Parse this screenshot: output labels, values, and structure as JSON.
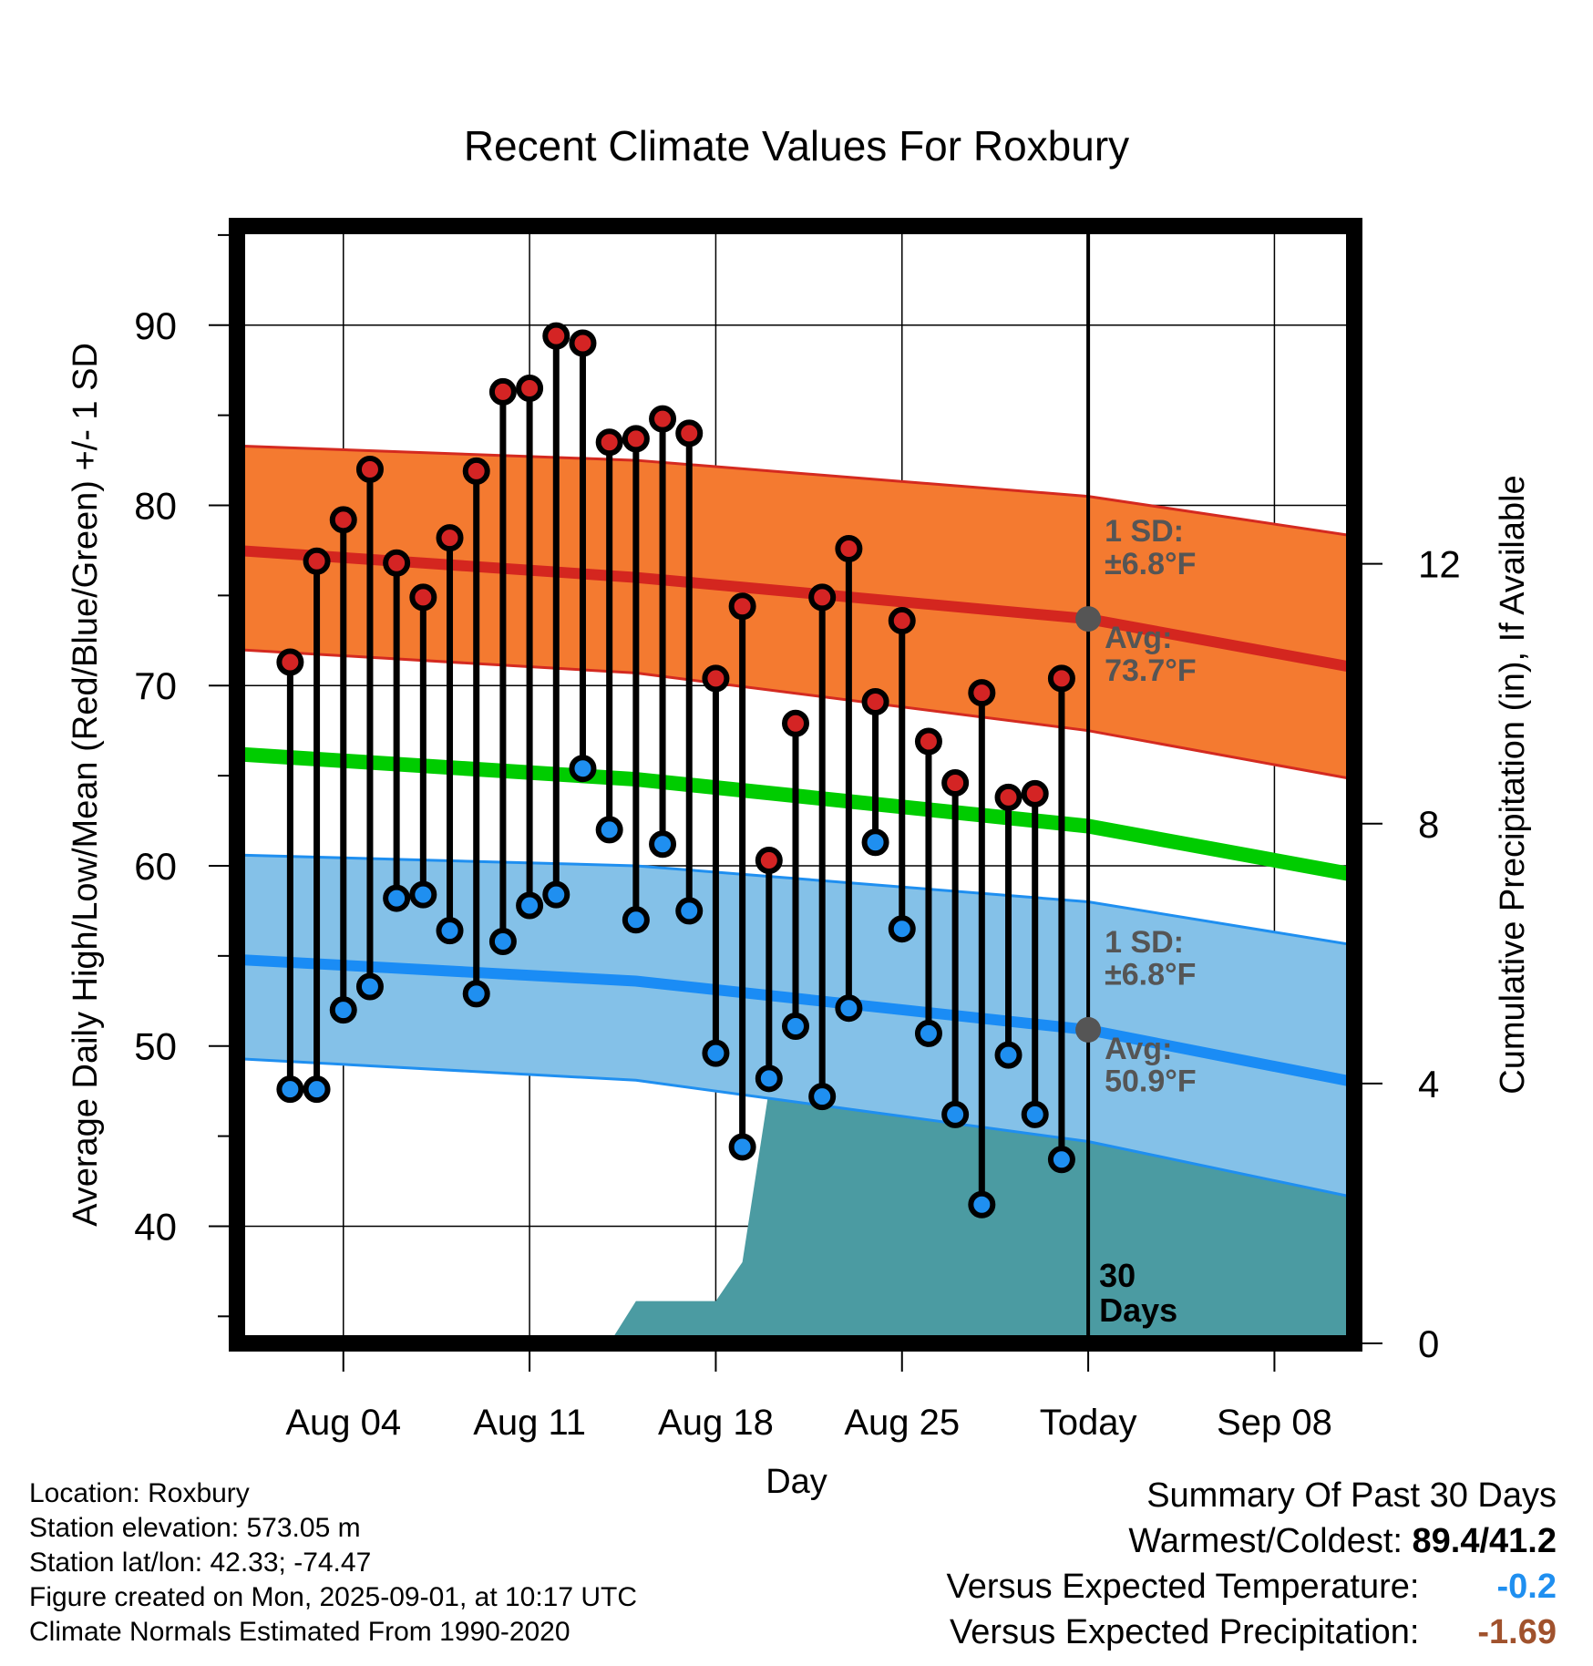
{
  "chart_data": {
    "type": "line",
    "title": "Recent Climate Values For Roxbury",
    "xlabel": "Day",
    "ylabel": "Average Daily High/Low/Mean (Red/Blue/Green) +/- 1 SD",
    "y2label": "Cumulative Precipitation (in), If Available",
    "ylim": [
      33.5,
      95.5
    ],
    "y2lim": [
      0,
      17.2
    ],
    "xlim": [
      "2025-07-31",
      "2025-09-11"
    ],
    "yticks": [
      40,
      50,
      60,
      70,
      80,
      90
    ],
    "y2ticks": [
      0,
      4,
      8,
      12
    ],
    "xticks": [
      {
        "date": "2025-08-04",
        "label": "Aug 04"
      },
      {
        "date": "2025-08-11",
        "label": "Aug 11"
      },
      {
        "date": "2025-08-18",
        "label": "Aug 18"
      },
      {
        "date": "2025-08-25",
        "label": "Aug 25"
      },
      {
        "date": "2025-09-01",
        "label": "Today"
      },
      {
        "date": "2025-09-08",
        "label": "Sep 08"
      }
    ],
    "grid": true,
    "colors": {
      "high_band": "#f47a30",
      "high_edge": "#d42a20",
      "high_avg": "#d4261f",
      "low_band": "#84c1e8",
      "low_edge": "#1f8ff0",
      "low_avg": "#1a8cf5",
      "mean": "#00cc00",
      "precip": "#4b9ba2",
      "high_marker": "#d42424",
      "low_marker": "#1f8ff0",
      "avg_marker": "#555555",
      "annotation": "#555555",
      "warm_value": "#1f8ff0",
      "precip_value": "#a0522d"
    },
    "dates": [
      "2025-08-02",
      "2025-08-03",
      "2025-08-04",
      "2025-08-05",
      "2025-08-06",
      "2025-08-07",
      "2025-08-08",
      "2025-08-09",
      "2025-08-10",
      "2025-08-11",
      "2025-08-12",
      "2025-08-13",
      "2025-08-14",
      "2025-08-15",
      "2025-08-16",
      "2025-08-17",
      "2025-08-18",
      "2025-08-19",
      "2025-08-20",
      "2025-08-21",
      "2025-08-22",
      "2025-08-23",
      "2025-08-24",
      "2025-08-25",
      "2025-08-26",
      "2025-08-27",
      "2025-08-28",
      "2025-08-29",
      "2025-08-30",
      "2025-08-31"
    ],
    "series": [
      {
        "name": "High",
        "values": [
          71.3,
          76.9,
          79.2,
          82.0,
          76.8,
          74.9,
          78.2,
          81.9,
          86.3,
          86.5,
          89.4,
          89.0,
          83.5,
          83.7,
          84.8,
          84.0,
          70.4,
          74.4,
          60.3,
          67.9,
          74.9,
          77.6,
          69.1,
          73.6,
          66.9,
          64.6,
          69.6,
          63.8,
          64.0,
          70.4
        ]
      },
      {
        "name": "Low",
        "values": [
          47.6,
          47.6,
          52.0,
          53.3,
          58.2,
          58.4,
          56.4,
          52.9,
          55.8,
          57.8,
          58.4,
          65.4,
          62.0,
          57.0,
          61.2,
          57.5,
          49.6,
          44.4,
          48.2,
          51.1,
          47.2,
          52.1,
          61.3,
          56.5,
          50.7,
          46.2,
          41.2,
          49.5,
          46.2,
          43.7
        ]
      }
    ],
    "normals": {
      "dates": [
        "2025-07-31",
        "2025-08-15",
        "2025-09-01",
        "2025-09-11"
      ],
      "high_avg": [
        77.5,
        76.0,
        73.7,
        71.0
      ],
      "high_upper": [
        83.3,
        82.5,
        80.5,
        78.3
      ],
      "high_lower": [
        72.0,
        70.7,
        67.5,
        64.8
      ],
      "mean": [
        66.2,
        64.8,
        62.2,
        59.5
      ],
      "low_avg": [
        54.8,
        53.6,
        50.9,
        48.0
      ],
      "low_upper": [
        60.6,
        60.0,
        58.0,
        55.6
      ],
      "low_lower": [
        49.3,
        48.1,
        44.7,
        41.6
      ]
    },
    "precip": {
      "dates": [
        "2025-07-31",
        "2025-08-14",
        "2025-08-15",
        "2025-08-18",
        "2025-08-19",
        "2025-08-20",
        "2025-08-24",
        "2025-08-25",
        "2025-08-26",
        "2025-09-11"
      ],
      "values": [
        0,
        0,
        0.65,
        0.65,
        1.25,
        3.9,
        3.9,
        4.3,
        4.75,
        4.75
      ]
    },
    "today": "2025-09-01",
    "today_label": "30\nDays",
    "annotations": {
      "high_sd": "1 SD:\n±6.8°F",
      "high_avg": "Avg:\n73.7°F",
      "low_sd": "1 SD:\n±6.8°F",
      "low_avg": "Avg:\n50.9°F",
      "high_avg_value": 73.7,
      "low_avg_value": 50.9
    }
  },
  "footer_left": [
    "Location: Roxbury",
    "Station elevation: 573.05 m",
    "Station lat/lon: 42.33; -74.47",
    "Figure created on Mon, 2025-09-01, at 10:17 UTC",
    "Climate Normals Estimated From 1990-2020"
  ],
  "summary": {
    "title": "Summary Of Past 30 Days",
    "warmest_label": "Warmest/Coldest:",
    "warmest_value": "89.4/41.2",
    "temp_label": "Versus Expected Temperature:",
    "temp_value": "-0.2",
    "precip_label": "Versus Expected Precipitation:",
    "precip_value": "-1.69"
  }
}
